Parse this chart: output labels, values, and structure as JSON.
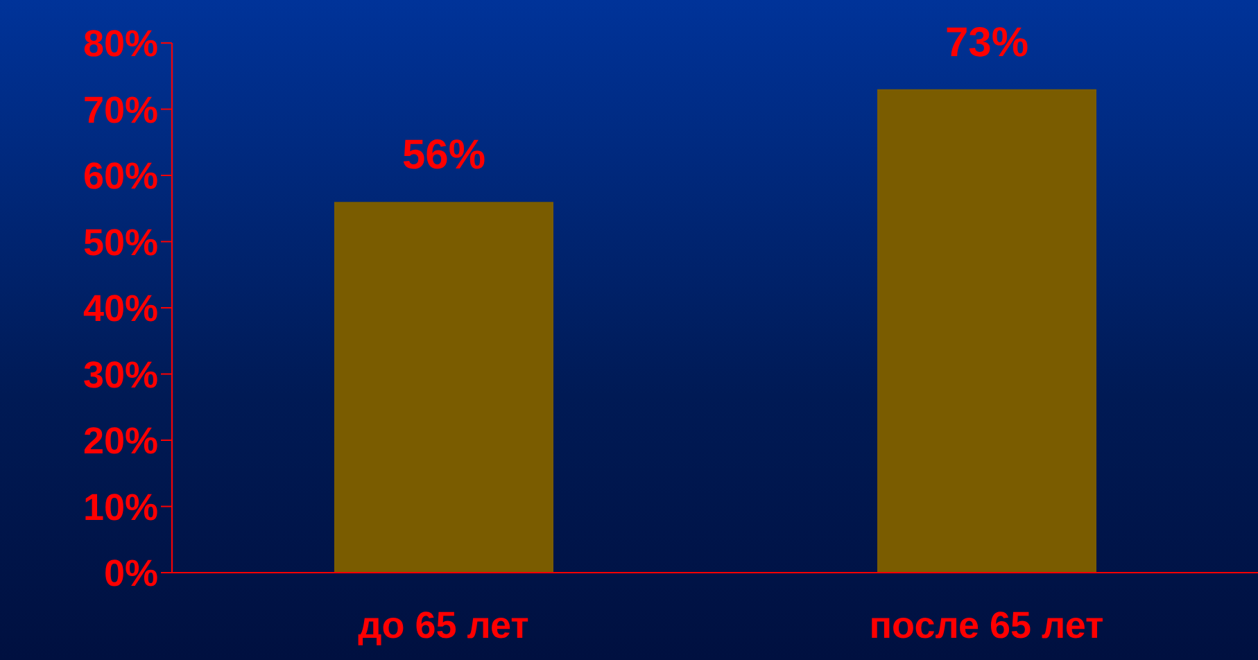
{
  "chart_data": {
    "type": "bar",
    "categories": [
      "до 65 лет",
      "после  65 лет"
    ],
    "values": [
      56,
      73
    ],
    "value_labels": [
      "56%",
      "73%"
    ],
    "color": "#7a5c00",
    "ylim": [
      0,
      80
    ],
    "yticks": [
      {
        "value": 0,
        "label": "0%"
      },
      {
        "value": 10,
        "label": "10%"
      },
      {
        "value": 20,
        "label": "20%"
      },
      {
        "value": 30,
        "label": "30%"
      },
      {
        "value": 40,
        "label": "40%"
      },
      {
        "value": 50,
        "label": "50%"
      },
      {
        "value": 60,
        "label": "60%"
      },
      {
        "value": 70,
        "label": "70%"
      },
      {
        "value": 80,
        "label": "80%"
      }
    ],
    "grid": false,
    "legend": false
  }
}
